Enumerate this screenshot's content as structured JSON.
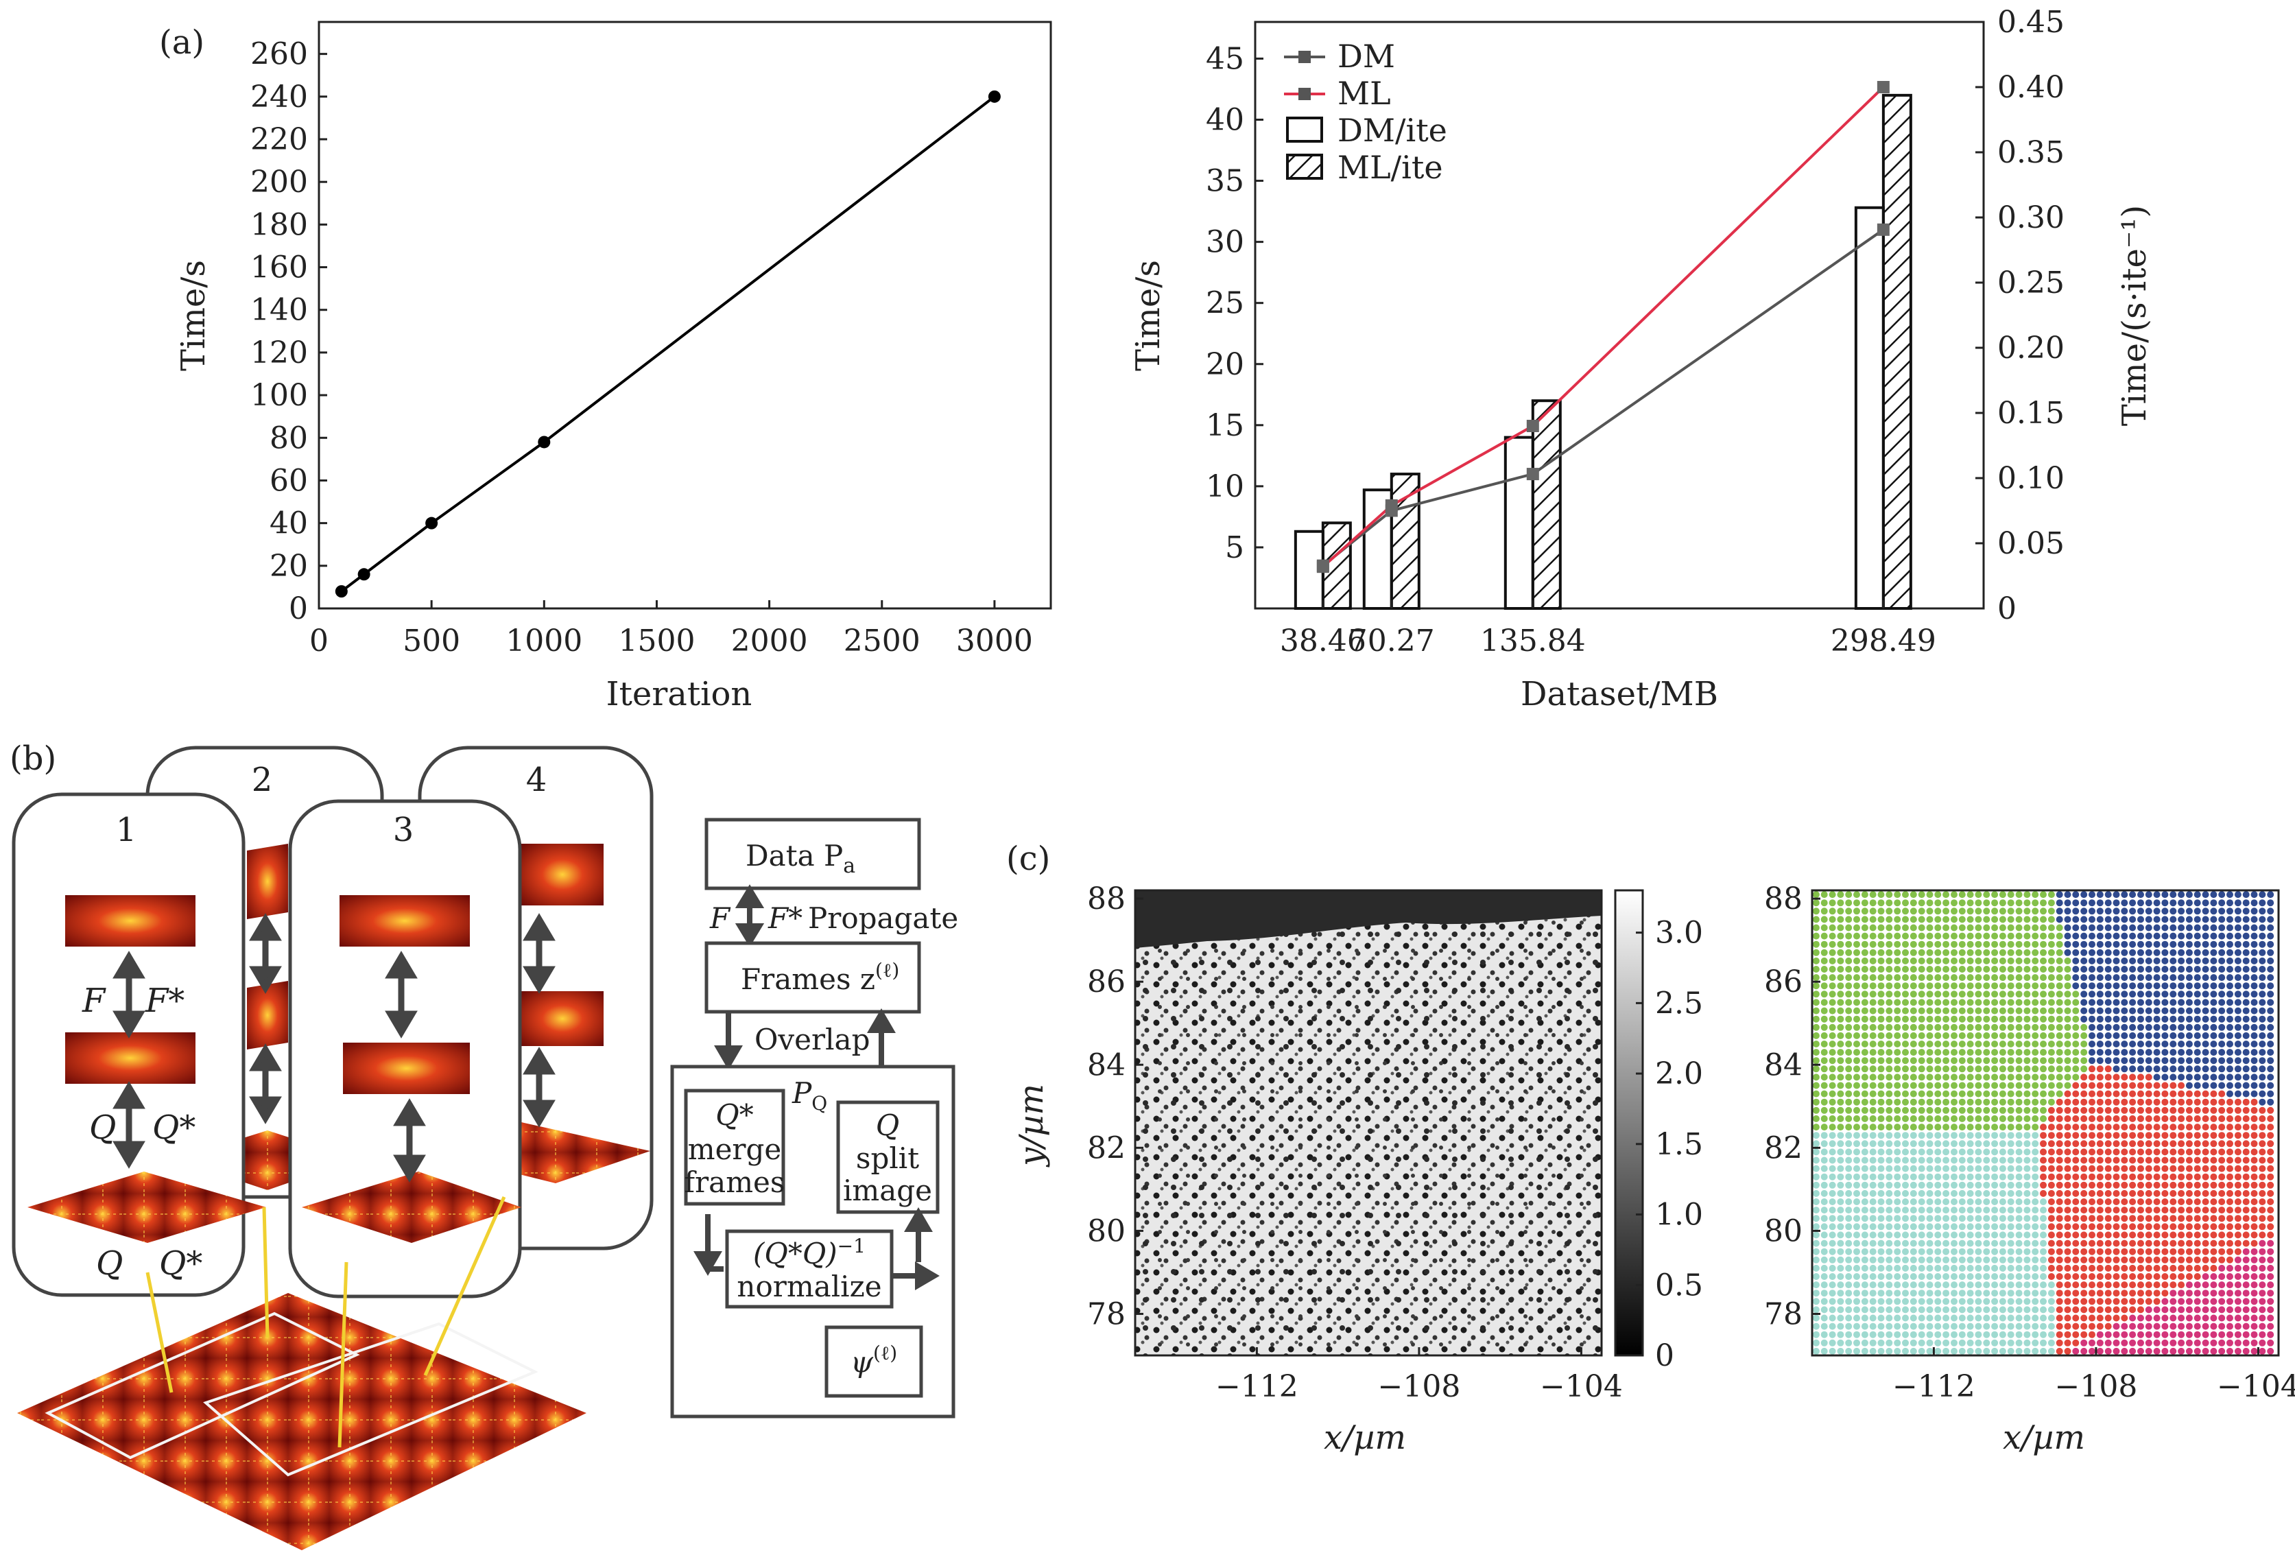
{
  "panels": {
    "a": "(a)",
    "b": "(b)",
    "c": "(c)"
  },
  "chart_data": [
    {
      "type": "line",
      "xlabel": "Iteration",
      "ylabel": "Time/s",
      "xlim": [
        0,
        3250
      ],
      "ylim": [
        0,
        275
      ],
      "xticks": [
        0,
        500,
        1000,
        1500,
        2000,
        2500,
        3000
      ],
      "yticks": [
        0,
        20,
        40,
        60,
        80,
        100,
        120,
        140,
        160,
        180,
        200,
        220,
        240,
        260
      ],
      "x": [
        100,
        200,
        500,
        1000,
        3000
      ],
      "y": [
        8,
        16,
        40,
        78,
        240
      ],
      "color": "#000000"
    },
    {
      "type": "bar",
      "xlabel": "Dataset/MB",
      "ylabel": "Time/s",
      "ylabel_right": "Time/(s·ite⁻¹)",
      "categories": [
        "38.46",
        "70.27",
        "135.84",
        "298.49"
      ],
      "x": [
        38.46,
        70.27,
        135.84,
        298.49
      ],
      "xlim": [
        7,
        345
      ],
      "ylim": [
        0,
        48
      ],
      "ylim_right": [
        0,
        0.45
      ],
      "yticks": [
        5,
        10,
        15,
        20,
        25,
        30,
        35,
        40,
        45
      ],
      "yticks_right": [
        "0",
        "0.05",
        "0.10",
        "0.15",
        "0.20",
        "0.25",
        "0.30",
        "0.35",
        "0.40",
        "0.45"
      ],
      "series": [
        {
          "name": "DM",
          "kind": "line",
          "axis": "left",
          "color": "#555555",
          "values": [
            3.5,
            8,
            11,
            31
          ]
        },
        {
          "name": "ML",
          "kind": "line",
          "axis": "right",
          "color": "#e0304a",
          "values": [
            0.032,
            0.079,
            0.14,
            0.4
          ]
        },
        {
          "name": "DM/ite",
          "kind": "bar",
          "axis": "left",
          "fill": "open",
          "values": [
            6.3,
            9.7,
            14,
            32.8
          ]
        },
        {
          "name": "ML/ite",
          "kind": "bar",
          "axis": "left",
          "fill": "hatched",
          "values": [
            7,
            11,
            17,
            42
          ]
        }
      ],
      "legend_position": "top-left"
    },
    {
      "type": "heatmap",
      "xlabel": "x/µm",
      "ylabel": "y/µm",
      "xlim": [
        -115,
        -103.5
      ],
      "ylim": [
        77,
        88.2
      ],
      "xticks": [
        -112,
        -108,
        -104
      ],
      "xtick_labels": [
        "−112",
        "−108",
        "−104"
      ],
      "yticks": [
        78,
        80,
        82,
        84,
        86,
        88
      ],
      "colorbar_ticks": [
        0,
        0.5,
        1.0,
        1.5,
        2.0,
        2.5,
        3.0
      ],
      "colorbar_labels": [
        "0",
        "0.5",
        "1.0",
        "1.5",
        "2.0",
        "2.5",
        "3.0"
      ],
      "colorbar_range": [
        0,
        3.3
      ],
      "colormap": "gray"
    },
    {
      "type": "scatter",
      "xlabel": "x/µm",
      "xlim": [
        -115,
        -103.5
      ],
      "ylim": [
        77,
        88.2
      ],
      "xticks": [
        -112,
        -108,
        -104
      ],
      "xtick_labels": [
        "−112",
        "−108",
        "−104"
      ],
      "yticks": [
        78,
        80,
        82,
        84,
        86,
        88
      ],
      "regions": [
        {
          "color": "#84c04a",
          "center": [
            -112,
            85
          ]
        },
        {
          "color": "#2f4a8e",
          "center": [
            -105,
            86.5
          ]
        },
        {
          "color": "#e2453a",
          "center": [
            -106.5,
            80.5
          ]
        },
        {
          "color": "#9fdad0",
          "center": [
            -112,
            80
          ]
        },
        {
          "color": "#d3357a",
          "center": [
            -104.5,
            77.2
          ]
        }
      ]
    }
  ],
  "diagram": {
    "node_labels": [
      "1",
      "2",
      "3",
      "4"
    ],
    "F": "F",
    "Fstar": "F*",
    "Q": "Q",
    "Qstar": "Q*",
    "flow": {
      "data": "Data P",
      "data_sub": "a",
      "propagate": "Propagate",
      "frames": "Frames z",
      "frames_sup": "(ℓ)",
      "overlap": "Overlap",
      "PQ": "P",
      "PQ_sub": "Q",
      "merge": [
        "Q*",
        "merge",
        "frames"
      ],
      "split": [
        "Q",
        "split",
        "image"
      ],
      "normalize": [
        "(Q*Q)",
        "−1",
        "normalize"
      ],
      "psi": "ψ",
      "psi_sup": "(ℓ)"
    }
  }
}
